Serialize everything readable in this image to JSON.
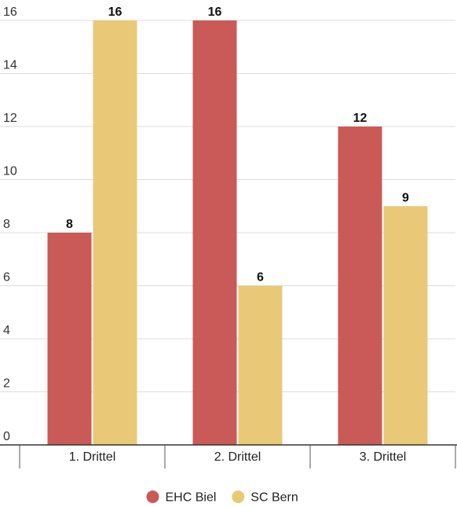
{
  "chart_data": {
    "type": "bar",
    "categories": [
      "1. Drittel",
      "2. Drittel",
      "3. Drittel"
    ],
    "series": [
      {
        "name": "EHC Biel",
        "values": [
          8,
          16,
          12
        ],
        "color": "#c95a57"
      },
      {
        "name": "SC Bern",
        "values": [
          16,
          6,
          9
        ],
        "color": "#e9c977"
      }
    ],
    "y_ticks": [
      0,
      2,
      4,
      6,
      8,
      10,
      12,
      14,
      16
    ],
    "ylim": [
      0,
      16
    ],
    "grid": true,
    "data_labels": true,
    "legend_position": "bottom-center"
  }
}
